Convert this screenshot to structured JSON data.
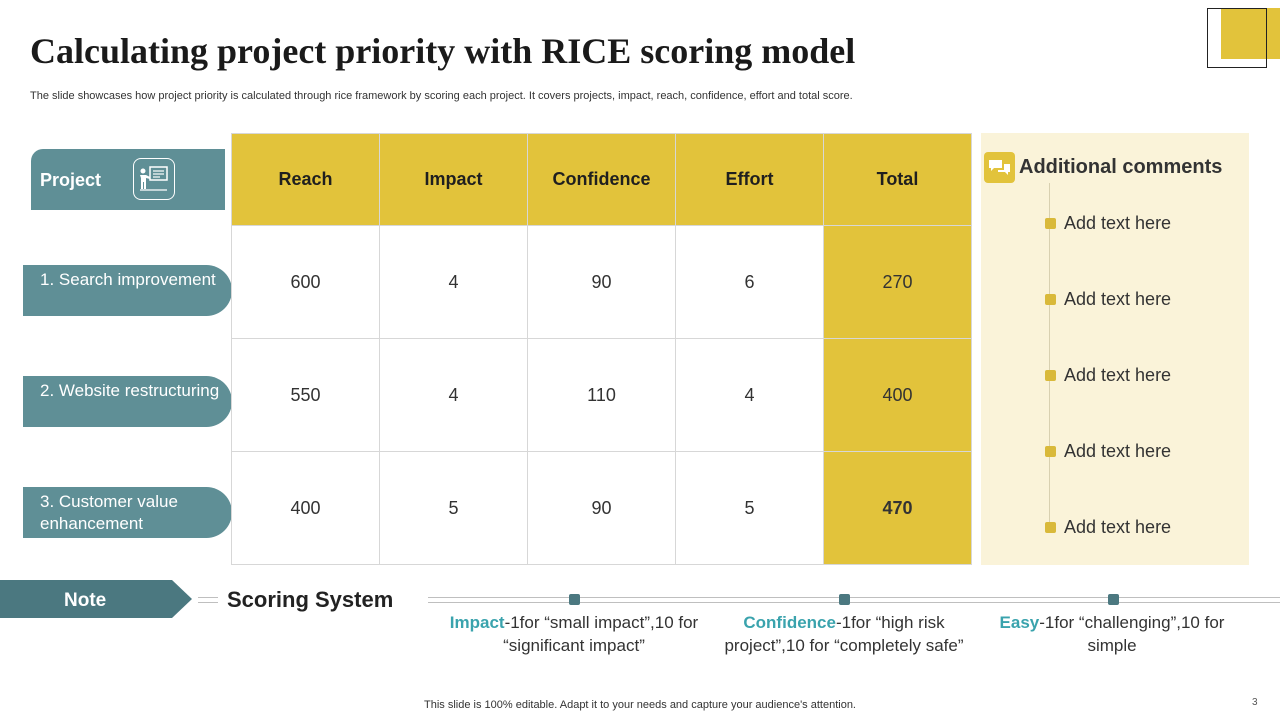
{
  "slide": {
    "title": "Calculating project priority with RICE scoring model",
    "subtitle": "The slide showcases how project priority is calculated through rice framework by scoring each project. It covers projects, impact, reach, confidence, effort and total score.",
    "footer": "This slide is 100% editable. Adapt it to your needs and capture your audience's attention.",
    "page_number": "3"
  },
  "projects": {
    "header": "Project",
    "icon": "presentation-icon",
    "items": [
      "1. Search improvement",
      "2. Website restructuring",
      "3. Customer value enhancement"
    ]
  },
  "table": {
    "columns": [
      "Reach",
      "Impact",
      "Confidence",
      "Effort",
      "Total"
    ],
    "rows": [
      [
        "600",
        "4",
        "90",
        "6",
        "270"
      ],
      [
        "550",
        "4",
        "110",
        "4",
        "400"
      ],
      [
        "400",
        "5",
        "90",
        "5",
        "470"
      ]
    ]
  },
  "comments": {
    "title": "Additional comments",
    "icon": "chat-bubbles-icon",
    "items": [
      "Add text here",
      "Add text here",
      "Add text here",
      "Add text here",
      "Add text here"
    ]
  },
  "note": {
    "label": "Note",
    "heading": "Scoring System",
    "definitions": [
      {
        "keyword": "Impact",
        "text": "-1for “small impact”,10 for “significant impact”"
      },
      {
        "keyword": "Confidence",
        "text": "-1for “high risk project”,10 for “completely safe”"
      },
      {
        "keyword": "Easy",
        "text": "-1for “challenging”,10 for simple"
      }
    ]
  },
  "colors": {
    "accent_yellow": "#e2c33b",
    "teal": "#5f8f96",
    "dark_teal": "#4b7880",
    "keyword": "#3aa3ad",
    "panel_bg": "#faf3d9"
  }
}
